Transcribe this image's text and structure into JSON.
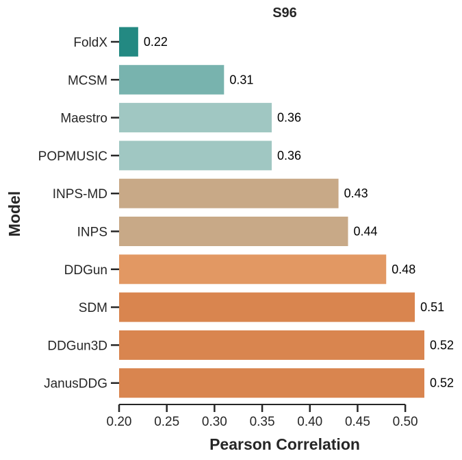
{
  "chart_data": {
    "type": "bar",
    "orientation": "horizontal",
    "title": "S96",
    "xlabel": "Pearson Correlation",
    "ylabel": "Model",
    "xlim": [
      0.2,
      0.52
    ],
    "xticks": [
      "0.20",
      "0.25",
      "0.30",
      "0.35",
      "0.40",
      "0.45",
      "0.50"
    ],
    "grid": false,
    "legend": "none",
    "categories": [
      "FoldX",
      "MCSM",
      "Maestro",
      "POPMUSIC",
      "INPS-MD",
      "INPS",
      "DDGun",
      "SDM",
      "DDGun3D",
      "JanusDDG"
    ],
    "values": [
      0.22,
      0.31,
      0.36,
      0.36,
      0.43,
      0.44,
      0.48,
      0.51,
      0.52,
      0.52
    ],
    "value_labels": [
      "0.22",
      "0.31",
      "0.36",
      "0.36",
      "0.43",
      "0.44",
      "0.48",
      "0.51",
      "0.52",
      "0.52"
    ],
    "colors": [
      "#238982",
      "#78b3ae",
      "#a0c7c2",
      "#a0c7c2",
      "#c8a987",
      "#c8a987",
      "#e29863",
      "#d9854f",
      "#d9854f",
      "#d9854f"
    ]
  }
}
